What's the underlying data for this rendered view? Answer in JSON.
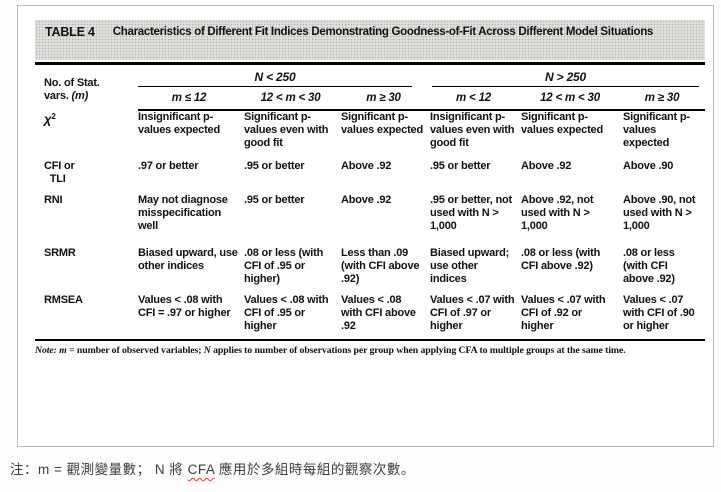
{
  "table": {
    "tag": "TABLE 4",
    "title": "Characteristics of Different Fit Indices Demonstrating Goodness-of-Fit Across Different Model Situations",
    "stub_header_line1": "No. of Stat.",
    "stub_header_line2_html": "vars. <i>(m)</i>",
    "groups": [
      {
        "label": "N < 250",
        "cols": [
          "m ≤ 12",
          "12 < m < 30",
          "m ≥ 30"
        ]
      },
      {
        "label": "N > 250",
        "cols": [
          "m < 12",
          "12 < m < 30",
          "m ≥ 30"
        ]
      }
    ],
    "rows": [
      {
        "label_html": "<span class=\"chi\">χ</span><sup>2</sup>",
        "cells": [
          "Insignificant p-values expected",
          "Significant p-values even with good fit",
          "Significant p-values expected",
          "Insignificant p-values even with good fit",
          "Significant p-values expected",
          "Significant p-values expected"
        ]
      },
      {
        "label": "CFI or\n  TLI",
        "cells": [
          ".97 or better",
          ".95 or better",
          "Above .92",
          ".95 or better",
          "Above .92",
          "Above .90"
        ]
      },
      {
        "label": "RNI",
        "cells": [
          "May not diagnose misspecification well",
          ".95 or better",
          "Above .92",
          ".95 or better, not used with N > 1,000",
          "Above .92, not used with N > 1,000",
          "Above .90, not used with N > 1,000"
        ]
      },
      {
        "label": "SRMR",
        "cells": [
          "Biased upward, use other indices",
          ".08 or less (with CFI of .95 or higher)",
          "Less than .09 (with CFI above .92)",
          "Biased upward; use other indices",
          ".08 or less (with CFI above .92)",
          ".08 or less (with CFI above .92)"
        ]
      },
      {
        "label": "RMSEA",
        "cells": [
          "Values < .08 with CFI = .97 or higher",
          "Values < .08 with CFI of .95 or higher",
          "Values < .08 with CFI above .92",
          "Values < .07 with CFI of .97 or higher",
          "Values < .07 with CFI of .92 or higher",
          "Values < .07 with CFI of .90 or higher"
        ]
      }
    ],
    "note_html": "<i>Note: m</i> = number of observed variables; <i>N</i> applies to number of observations per group when applying CFA to multiple groups at the same time."
  },
  "caption": {
    "html": "注：m = 觀測變量數； N 將 <span class=\"spell-error\">CFA</span> 應用於多組時每組的觀察次數。"
  },
  "colors": {
    "title_band_bg": "#e0e0de",
    "rule": "#000000",
    "figure_border": "#b9b9b9",
    "spell_underline": "#e0392e"
  }
}
